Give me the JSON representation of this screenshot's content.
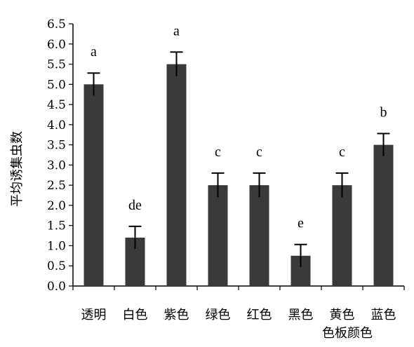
{
  "chart_data": {
    "type": "bar",
    "categories": [
      "透明",
      "白色",
      "紫色",
      "绿色",
      "红色",
      "黑色",
      "黄色",
      "蓝色"
    ],
    "values": [
      5.0,
      1.2,
      5.5,
      2.5,
      2.5,
      0.75,
      2.5,
      3.5
    ],
    "errors": [
      0.28,
      0.28,
      0.3,
      0.3,
      0.3,
      0.28,
      0.3,
      0.28
    ],
    "significance": [
      "a",
      "de",
      "a",
      "c",
      "c",
      "e",
      "c",
      "b"
    ],
    "xlabel": "色板颜色",
    "ylabel": "平均诱集虫数",
    "ylim": [
      0,
      6.5
    ],
    "yticks": [
      "0.0",
      "0.5",
      "1.0",
      "1.5",
      "2.0",
      "2.5",
      "3.0",
      "3.5",
      "4.0",
      "4.5",
      "5.0",
      "5.5",
      "6.0",
      "6.5"
    ],
    "bar_color": "#3a3a3a",
    "grid": false,
    "legend": "none"
  }
}
